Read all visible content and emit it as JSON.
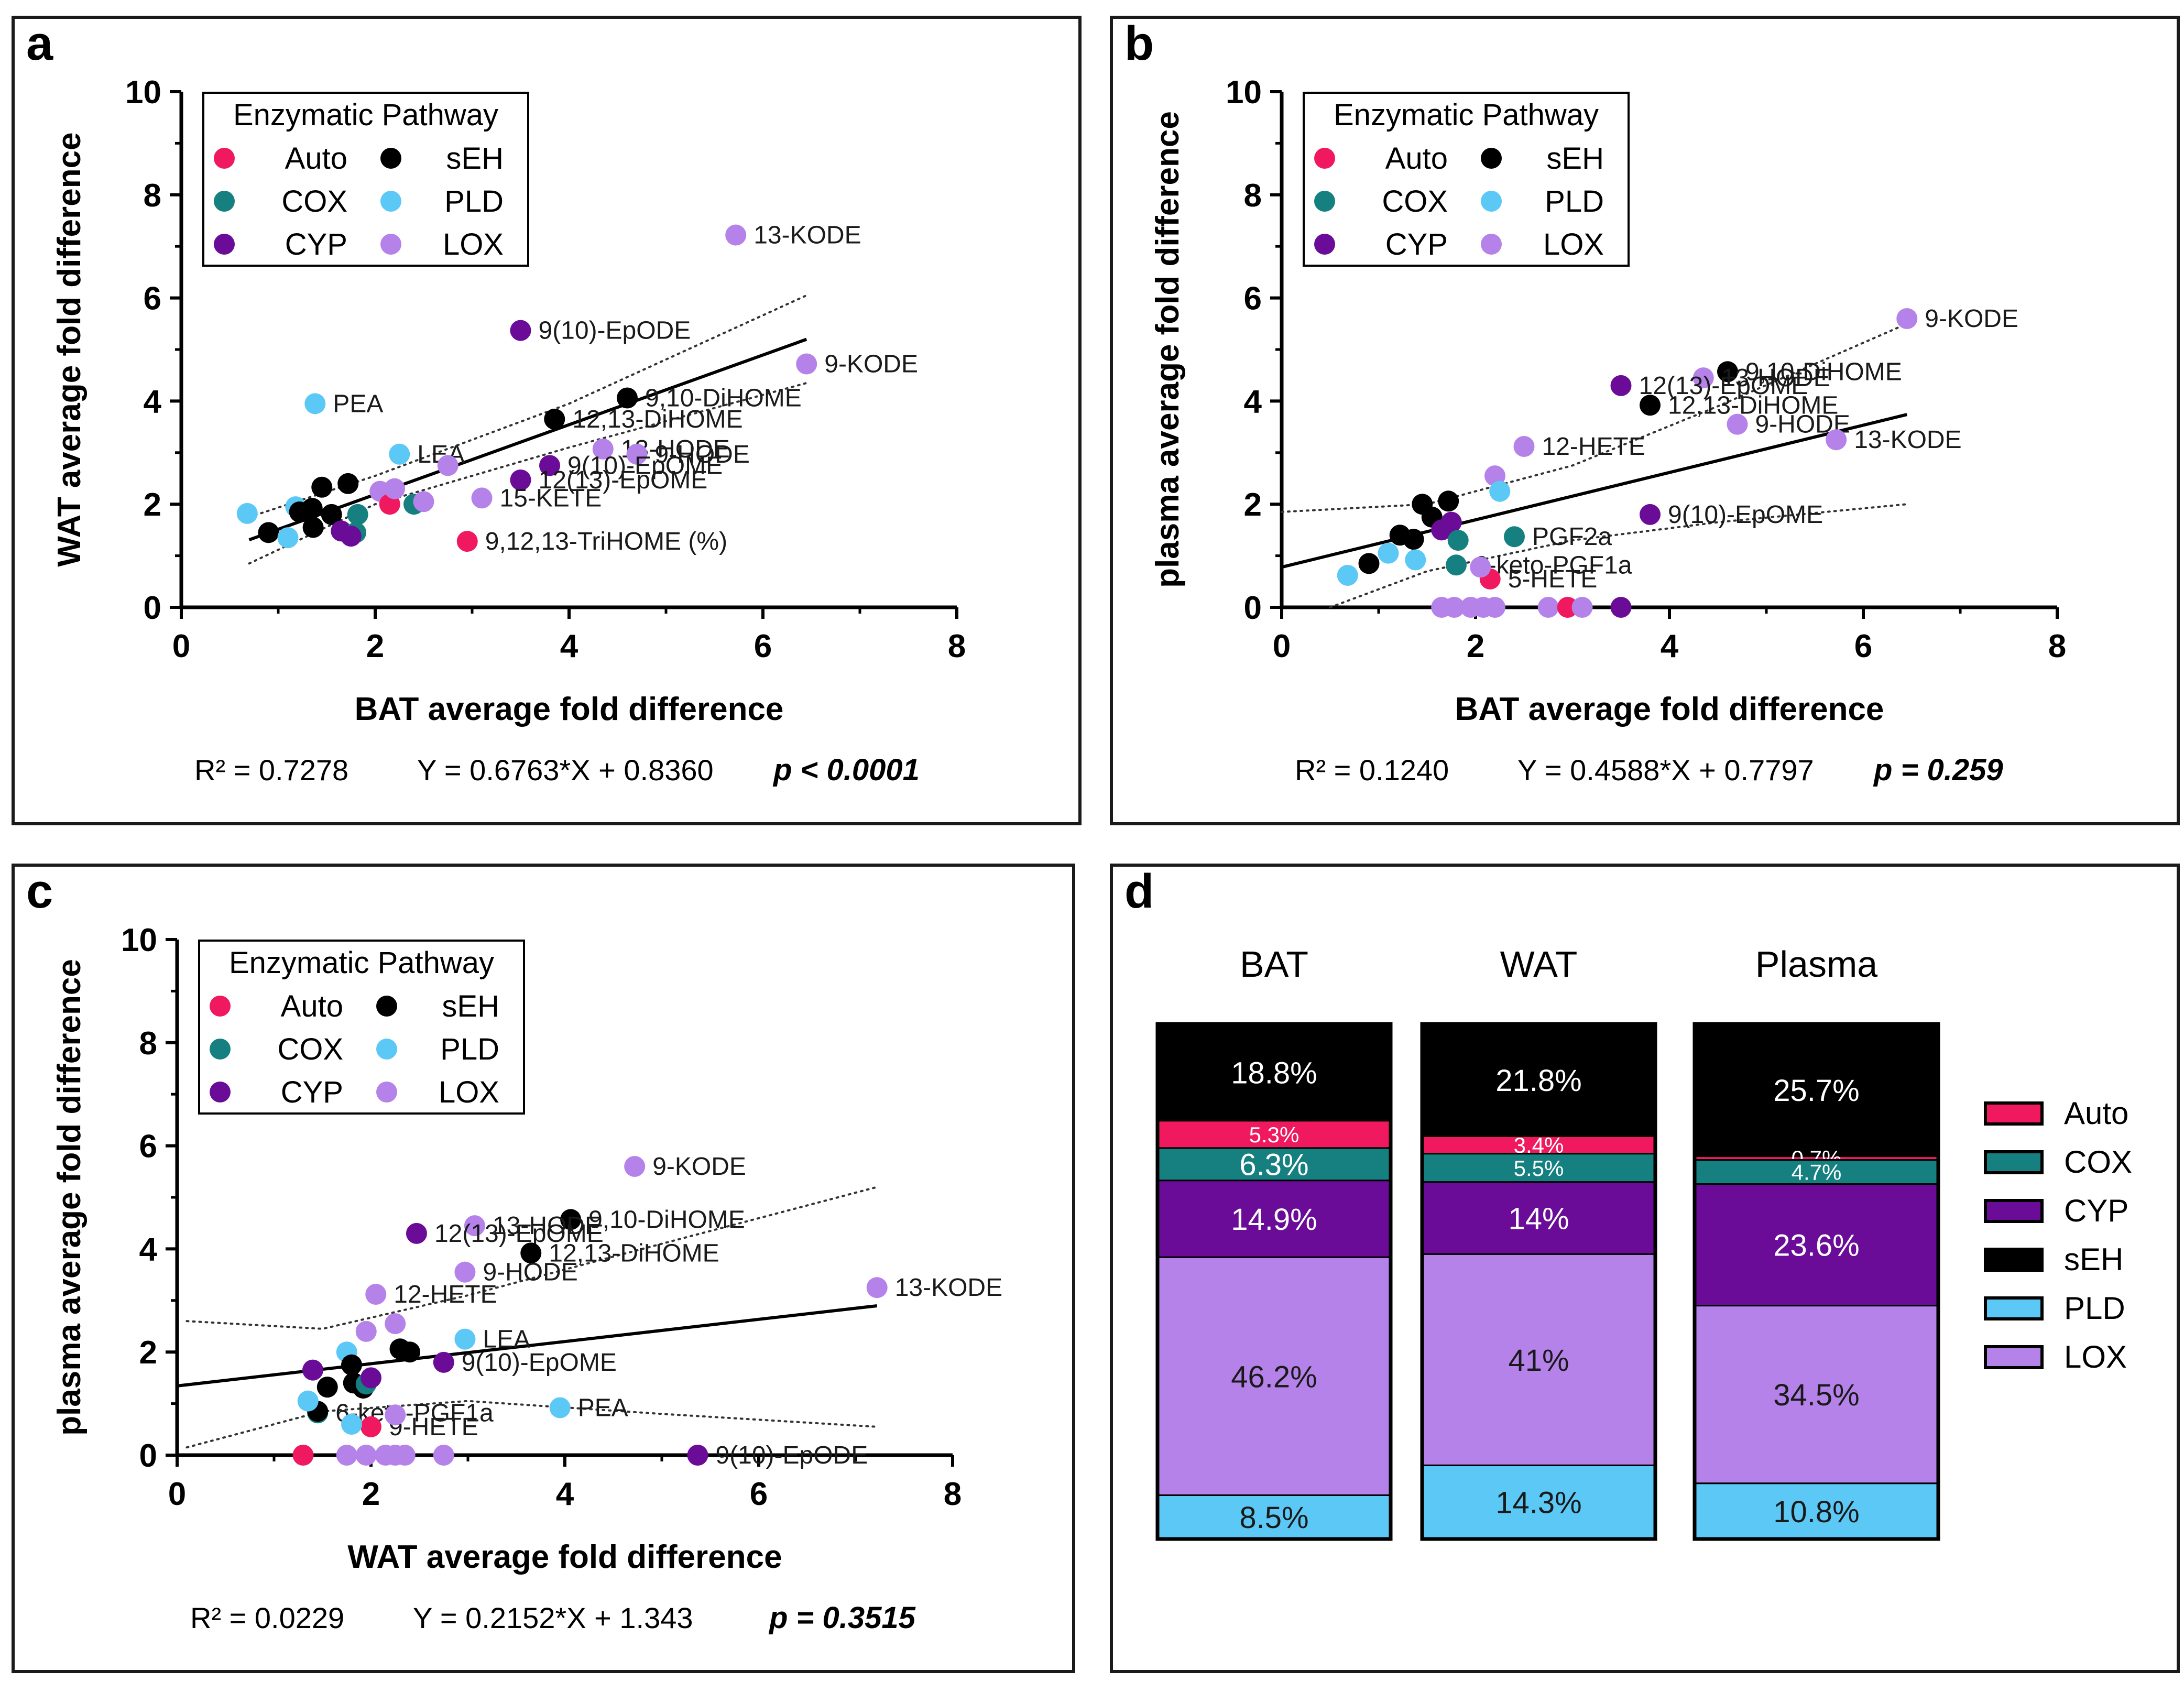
{
  "colors": {
    "Auto": "#f0185f",
    "COX": "#168080",
    "CYP": "#6a0c97",
    "sEH": "#000000",
    "PLD": "#5cc8f6",
    "LOX": "#b582ea"
  },
  "legend": {
    "title": "Enzymatic Pathway",
    "items": [
      "Auto",
      "COX",
      "CYP",
      "sEH",
      "PLD",
      "LOX"
    ]
  },
  "chart_data": [
    {
      "panel": "a",
      "type": "scatter",
      "xlabel": "BAT average fold difference",
      "ylabel": "WAT average fold difference",
      "xlim": [
        0,
        8
      ],
      "ylim": [
        0,
        10
      ],
      "xticks": [
        "0",
        "2",
        "4",
        "6",
        "8"
      ],
      "yticks": [
        "0",
        "2",
        "4",
        "6",
        "8",
        "10"
      ],
      "stats": {
        "r2": "R² = 0.7278",
        "eq": "Y = 0.6763*X + 0.8360",
        "p": "p < 0.0001"
      },
      "fit": {
        "slope": 0.6763,
        "intercept": 0.836,
        "x": [
          0.7,
          6.45
        ],
        "ci_upper": [
          [
            0.7,
            1.75
          ],
          [
            2,
            2.55
          ],
          [
            4,
            3.95
          ],
          [
            6.45,
            6.05
          ]
        ],
        "ci_lower": [
          [
            0.7,
            0.85
          ],
          [
            2,
            2.0
          ],
          [
            4,
            3.1
          ],
          [
            6.45,
            4.35
          ]
        ]
      },
      "points": [
        {
          "x": 5.72,
          "y": 7.22,
          "p": "LOX",
          "label": "13-KODE"
        },
        {
          "x": 3.5,
          "y": 5.37,
          "p": "CYP",
          "label": "9(10)-EpODE"
        },
        {
          "x": 6.45,
          "y": 4.72,
          "p": "LOX",
          "label": "9-KODE"
        },
        {
          "x": 4.6,
          "y": 4.06,
          "p": "sEH",
          "label": "9,10-DiHOME"
        },
        {
          "x": 3.85,
          "y": 3.65,
          "p": "sEH",
          "label": "12,13-DiHOME"
        },
        {
          "x": 1.38,
          "y": 3.95,
          "p": "PLD",
          "label": "PEA"
        },
        {
          "x": 2.25,
          "y": 2.97,
          "p": "PLD",
          "label": "LEA"
        },
        {
          "x": 4.35,
          "y": 3.07,
          "p": "LOX",
          "label": "13-HODE"
        },
        {
          "x": 4.7,
          "y": 2.97,
          "p": "LOX",
          "label": "9-HODE"
        },
        {
          "x": 3.8,
          "y": 2.75,
          "p": "CYP",
          "label": "9(10)-EpOME"
        },
        {
          "x": 3.5,
          "y": 2.47,
          "p": "CYP",
          "label": "12(13)-EpOME"
        },
        {
          "x": 3.1,
          "y": 2.12,
          "p": "LOX",
          "label": "15-KETE"
        },
        {
          "x": 2.95,
          "y": 1.28,
          "p": "Auto",
          "label": "9,12,13-TriHOME (%)"
        },
        {
          "x": 0.68,
          "y": 1.82,
          "p": "PLD"
        },
        {
          "x": 0.9,
          "y": 1.45,
          "p": "sEH"
        },
        {
          "x": 1.1,
          "y": 1.35,
          "p": "PLD"
        },
        {
          "x": 1.18,
          "y": 1.95,
          "p": "PLD"
        },
        {
          "x": 1.22,
          "y": 1.85,
          "p": "sEH"
        },
        {
          "x": 1.35,
          "y": 1.92,
          "p": "sEH"
        },
        {
          "x": 1.36,
          "y": 1.55,
          "p": "sEH"
        },
        {
          "x": 1.45,
          "y": 2.33,
          "p": "sEH"
        },
        {
          "x": 1.55,
          "y": 1.8,
          "p": "sEH"
        },
        {
          "x": 1.65,
          "y": 1.48,
          "p": "CYP"
        },
        {
          "x": 1.72,
          "y": 2.4,
          "p": "sEH"
        },
        {
          "x": 1.8,
          "y": 1.45,
          "p": "COX"
        },
        {
          "x": 1.75,
          "y": 1.38,
          "p": "CYP"
        },
        {
          "x": 1.82,
          "y": 1.8,
          "p": "COX"
        },
        {
          "x": 2.05,
          "y": 2.25,
          "p": "LOX"
        },
        {
          "x": 2.15,
          "y": 2.0,
          "p": "Auto"
        },
        {
          "x": 2.2,
          "y": 2.3,
          "p": "LOX"
        },
        {
          "x": 2.4,
          "y": 2.0,
          "p": "COX"
        },
        {
          "x": 2.5,
          "y": 2.05,
          "p": "LOX"
        },
        {
          "x": 2.75,
          "y": 2.75,
          "p": "LOX"
        }
      ]
    },
    {
      "panel": "b",
      "type": "scatter",
      "xlabel": "BAT average fold difference",
      "ylabel": "plasma average fold difference",
      "xlim": [
        0,
        8
      ],
      "ylim": [
        0,
        10
      ],
      "xticks": [
        "0",
        "2",
        "4",
        "6",
        "8"
      ],
      "yticks": [
        "0",
        "2",
        "4",
        "6",
        "8",
        "10"
      ],
      "stats": {
        "r2": "R² = 0.1240",
        "eq": "Y = 0.4588*X + 0.7797",
        "p": "p = 0.259"
      },
      "fit": {
        "slope": 0.4588,
        "intercept": 0.7797,
        "x": [
          0,
          6.45
        ],
        "ci_upper": [
          [
            0,
            1.85
          ],
          [
            1.5,
            2.0
          ],
          [
            3,
            2.75
          ],
          [
            4.5,
            3.9
          ],
          [
            6.45,
            5.5
          ]
        ],
        "ci_lower": [
          [
            0.5,
            0.0
          ],
          [
            1.5,
            0.7
          ],
          [
            3,
            1.3
          ],
          [
            4.5,
            1.65
          ],
          [
            6.45,
            2.0
          ]
        ]
      },
      "points": [
        {
          "x": 6.45,
          "y": 5.6,
          "p": "LOX",
          "label": "9-KODE"
        },
        {
          "x": 4.6,
          "y": 4.57,
          "p": "sEH",
          "label": "9,10-DiHOME"
        },
        {
          "x": 4.35,
          "y": 4.45,
          "p": "LOX",
          "label": "13-HODE"
        },
        {
          "x": 3.5,
          "y": 4.3,
          "p": "CYP",
          "label": "12(13)-EpOME"
        },
        {
          "x": 3.8,
          "y": 3.92,
          "p": "sEH",
          "label": "12,13-DiHOME"
        },
        {
          "x": 4.7,
          "y": 3.55,
          "p": "LOX",
          "label": "9-HODE"
        },
        {
          "x": 5.72,
          "y": 3.25,
          "p": "LOX",
          "label": "13-KODE"
        },
        {
          "x": 2.5,
          "y": 3.12,
          "p": "LOX",
          "label": "12-HETE"
        },
        {
          "x": 2.4,
          "y": 1.37,
          "p": "COX",
          "label": "PGF2a"
        },
        {
          "x": 3.8,
          "y": 1.8,
          "p": "CYP",
          "label": "9(10)-EpOME"
        },
        {
          "x": 1.8,
          "y": 0.82,
          "p": "COX",
          "label": "6-keto-PGF1a"
        },
        {
          "x": 2.15,
          "y": 0.55,
          "p": "Auto",
          "label": "5-HETE"
        },
        {
          "x": 0.68,
          "y": 0.62,
          "p": "PLD"
        },
        {
          "x": 0.9,
          "y": 0.85,
          "p": "sEH"
        },
        {
          "x": 1.1,
          "y": 1.05,
          "p": "PLD"
        },
        {
          "x": 1.22,
          "y": 1.4,
          "p": "sEH"
        },
        {
          "x": 1.36,
          "y": 1.32,
          "p": "sEH"
        },
        {
          "x": 1.38,
          "y": 0.92,
          "p": "PLD"
        },
        {
          "x": 1.45,
          "y": 2.0,
          "p": "sEH"
        },
        {
          "x": 1.55,
          "y": 1.75,
          "p": "sEH"
        },
        {
          "x": 1.65,
          "y": 1.5,
          "p": "CYP"
        },
        {
          "x": 1.72,
          "y": 2.06,
          "p": "sEH"
        },
        {
          "x": 1.75,
          "y": 1.65,
          "p": "CYP"
        },
        {
          "x": 1.82,
          "y": 1.3,
          "p": "COX"
        },
        {
          "x": 2.05,
          "y": 0.78,
          "p": "LOX"
        },
        {
          "x": 2.2,
          "y": 2.55,
          "p": "LOX"
        },
        {
          "x": 2.25,
          "y": 2.25,
          "p": "PLD"
        },
        {
          "x": 1.65,
          "y": 0.0,
          "p": "LOX"
        },
        {
          "x": 1.78,
          "y": 0.0,
          "p": "LOX"
        },
        {
          "x": 1.95,
          "y": 0.0,
          "p": "LOX"
        },
        {
          "x": 2.08,
          "y": 0.0,
          "p": "LOX"
        },
        {
          "x": 2.2,
          "y": 0.0,
          "p": "LOX"
        },
        {
          "x": 2.75,
          "y": 0.0,
          "p": "LOX"
        },
        {
          "x": 2.95,
          "y": 0.0,
          "p": "Auto"
        },
        {
          "x": 3.1,
          "y": 0.0,
          "p": "LOX"
        },
        {
          "x": 3.5,
          "y": 0.0,
          "p": "CYP"
        }
      ]
    },
    {
      "panel": "c",
      "type": "scatter",
      "xlabel": "WAT average fold difference",
      "ylabel": "plasma average fold difference",
      "xlim": [
        0,
        8
      ],
      "ylim": [
        0,
        10
      ],
      "xticks": [
        "0",
        "2",
        "4",
        "6",
        "8"
      ],
      "yticks": [
        "0",
        "2",
        "4",
        "6",
        "8",
        "10"
      ],
      "stats": {
        "r2": "R² = 0.0229",
        "eq": "Y = 0.2152*X + 1.343",
        "p": "p = 0.3515"
      },
      "fit": {
        "slope": 0.2152,
        "intercept": 1.343,
        "x": [
          0,
          7.22
        ],
        "ci_upper": [
          [
            0.1,
            2.6
          ],
          [
            1.5,
            2.45
          ],
          [
            3,
            3.1
          ],
          [
            5,
            4.1
          ],
          [
            7.22,
            5.2
          ]
        ],
        "ci_lower": [
          [
            0.1,
            0.15
          ],
          [
            1.5,
            0.85
          ],
          [
            3,
            1.05
          ],
          [
            5,
            0.8
          ],
          [
            7.22,
            0.55
          ]
        ]
      },
      "points": [
        {
          "x": 4.72,
          "y": 5.6,
          "p": "LOX",
          "label": "9-KODE"
        },
        {
          "x": 4.06,
          "y": 4.57,
          "p": "sEH",
          "label": "9,10-DiHOME"
        },
        {
          "x": 3.07,
          "y": 4.45,
          "p": "LOX",
          "label": "13-HODE"
        },
        {
          "x": 2.47,
          "y": 4.3,
          "p": "CYP",
          "label": "12(13)-EpOME"
        },
        {
          "x": 3.65,
          "y": 3.92,
          "p": "sEH",
          "label": "12,13-DiHOME"
        },
        {
          "x": 2.97,
          "y": 3.55,
          "p": "LOX",
          "label": "9-HODE"
        },
        {
          "x": 2.05,
          "y": 3.12,
          "p": "LOX",
          "label": "12-HETE"
        },
        {
          "x": 7.22,
          "y": 3.25,
          "p": "LOX",
          "label": "13-KODE"
        },
        {
          "x": 2.97,
          "y": 2.25,
          "p": "PLD",
          "label": "LEA"
        },
        {
          "x": 2.75,
          "y": 1.8,
          "p": "CYP",
          "label": "9(10)-EpOME"
        },
        {
          "x": 1.45,
          "y": 0.82,
          "p": "COX",
          "label": "6-keto-PGF1a"
        },
        {
          "x": 3.95,
          "y": 0.92,
          "p": "PLD",
          "label": "PEA"
        },
        {
          "x": 2.0,
          "y": 0.55,
          "p": "Auto",
          "label": "9-HETE"
        },
        {
          "x": 5.37,
          "y": 0.0,
          "p": "CYP",
          "label": "9(10)-EpODE"
        },
        {
          "x": 1.3,
          "y": 0.0,
          "p": "Auto"
        },
        {
          "x": 1.45,
          "y": 0.85,
          "p": "sEH"
        },
        {
          "x": 1.55,
          "y": 1.32,
          "p": "sEH"
        },
        {
          "x": 1.35,
          "y": 1.05,
          "p": "PLD"
        },
        {
          "x": 1.4,
          "y": 1.65,
          "p": "CYP"
        },
        {
          "x": 1.82,
          "y": 1.4,
          "p": "sEH"
        },
        {
          "x": 1.92,
          "y": 1.3,
          "p": "sEH"
        },
        {
          "x": 1.75,
          "y": 2.0,
          "p": "PLD"
        },
        {
          "x": 1.8,
          "y": 1.75,
          "p": "sEH"
        },
        {
          "x": 1.95,
          "y": 1.38,
          "p": "COX"
        },
        {
          "x": 1.8,
          "y": 0.6,
          "p": "PLD"
        },
        {
          "x": 2.0,
          "y": 1.5,
          "p": "CYP"
        },
        {
          "x": 2.3,
          "y": 2.06,
          "p": "sEH"
        },
        {
          "x": 2.4,
          "y": 2.0,
          "p": "sEH"
        },
        {
          "x": 2.25,
          "y": 2.55,
          "p": "LOX"
        },
        {
          "x": 1.95,
          "y": 2.4,
          "p": "LOX"
        },
        {
          "x": 2.25,
          "y": 0.78,
          "p": "LOX"
        },
        {
          "x": 1.75,
          "y": 0.0,
          "p": "LOX"
        },
        {
          "x": 1.95,
          "y": 0.0,
          "p": "LOX"
        },
        {
          "x": 2.15,
          "y": 0.0,
          "p": "LOX"
        },
        {
          "x": 2.25,
          "y": 0.0,
          "p": "LOX"
        },
        {
          "x": 2.35,
          "y": 0.0,
          "p": "LOX"
        },
        {
          "x": 2.75,
          "y": 0.0,
          "p": "LOX"
        }
      ]
    },
    {
      "panel": "d",
      "type": "bar",
      "stacked": true,
      "categories": [
        "BAT",
        "WAT",
        "Plasma"
      ],
      "stack_order_top_to_bottom": [
        "sEH",
        "Auto",
        "COX",
        "CYP",
        "LOX",
        "PLD"
      ],
      "series": [
        {
          "name": "sEH",
          "values": [
            18.8,
            21.8,
            25.7
          ],
          "labels": [
            "18.8%",
            "21.8%",
            "25.7%"
          ]
        },
        {
          "name": "Auto",
          "values": [
            5.3,
            3.4,
            0.7
          ],
          "labels": [
            "5.3%",
            "3.4%",
            "0.7%"
          ]
        },
        {
          "name": "COX",
          "values": [
            6.3,
            5.5,
            4.7
          ],
          "labels": [
            "6.3%",
            "5.5%",
            "4.7%"
          ]
        },
        {
          "name": "CYP",
          "values": [
            14.9,
            14,
            23.6
          ],
          "labels": [
            "14.9%",
            "14%",
            "23.6%"
          ]
        },
        {
          "name": "LOX",
          "values": [
            46.2,
            41,
            34.5
          ],
          "labels": [
            "46.2%",
            "41%",
            "34.5%"
          ]
        },
        {
          "name": "PLD",
          "values": [
            8.5,
            14.3,
            10.8
          ],
          "labels": [
            "8.5%",
            "14.3%",
            "10.8%"
          ]
        }
      ],
      "legend_order": [
        "Auto",
        "COX",
        "CYP",
        "sEH",
        "PLD",
        "LOX"
      ]
    }
  ]
}
